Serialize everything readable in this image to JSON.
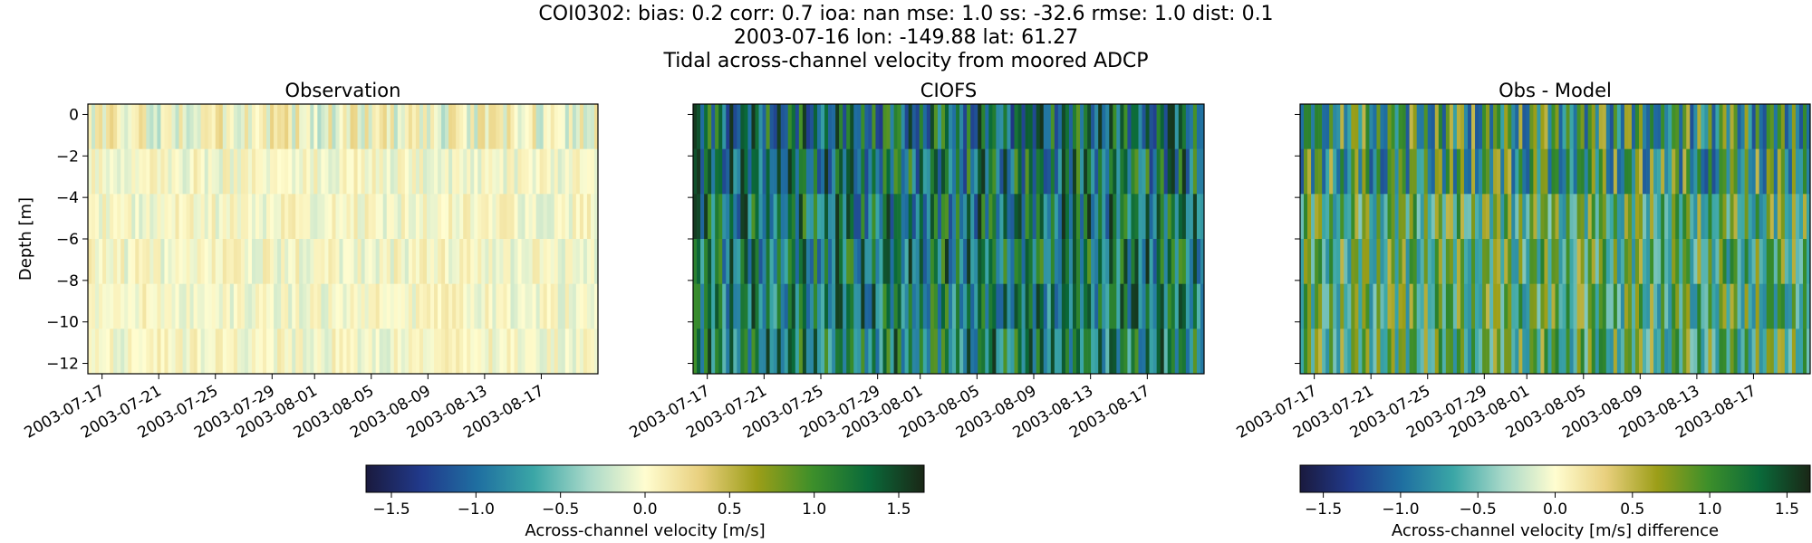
{
  "header": {
    "line1": "COI0302: bias: 0.2  corr: 0.7  ioa: nan  mse: 1.0  ss: -32.6  rmse: 1.0  dist: 0.1",
    "line2": "2003-07-16 lon: -149.88 lat: 61.27",
    "line3": "Tidal across-channel velocity from moored ADCP"
  },
  "colormap": [
    "#1a1a3e",
    "#213a8c",
    "#1f6fa1",
    "#3aa6a6",
    "#a9d9c9",
    "#fffdd0",
    "#e8cf7d",
    "#9c9e18",
    "#3d8f2a",
    "#0a6a3a",
    "#1a2716"
  ],
  "chart_data": [
    {
      "type": "heatmap",
      "title": "Observation",
      "xlabel": "",
      "ylabel": "Depth [m]",
      "x_ticks": [
        "2003-07-17",
        "2003-07-21",
        "2003-07-25",
        "2003-07-29",
        "2003-08-01",
        "2003-08-05",
        "2003-08-09",
        "2003-08-13",
        "2003-08-17"
      ],
      "y_ticks": [
        0,
        -2,
        -4,
        -6,
        -8,
        -10,
        -12
      ],
      "ylim": [
        -12.5,
        0.5
      ],
      "xlim": [
        "2003-07-16",
        "2003-08-21"
      ],
      "vmin": -1.65,
      "vmax": 1.65,
      "typical_amplitude": 0.5
    },
    {
      "type": "heatmap",
      "title": "CIOFS",
      "xlabel": "",
      "ylabel": "",
      "x_ticks": [
        "2003-07-17",
        "2003-07-21",
        "2003-07-25",
        "2003-07-29",
        "2003-08-01",
        "2003-08-05",
        "2003-08-09",
        "2003-08-13",
        "2003-08-17"
      ],
      "y_ticks": [
        0,
        -2,
        -4,
        -6,
        -8,
        -10,
        -12
      ],
      "ylim": [
        -12.5,
        0.5
      ],
      "xlim": [
        "2003-07-16",
        "2003-08-21"
      ],
      "vmin": -1.65,
      "vmax": 1.65,
      "typical_amplitude": 1.6
    },
    {
      "type": "heatmap",
      "title": "Obs - Model",
      "xlabel": "",
      "ylabel": "",
      "x_ticks": [
        "2003-07-17",
        "2003-07-21",
        "2003-07-25",
        "2003-07-29",
        "2003-08-01",
        "2003-08-05",
        "2003-08-09",
        "2003-08-13",
        "2003-08-17"
      ],
      "y_ticks": [
        0,
        -2,
        -4,
        -6,
        -8,
        -10,
        -12
      ],
      "ylim": [
        -12.5,
        0.5
      ],
      "xlim": [
        "2003-07-16",
        "2003-08-21"
      ],
      "vmin": -1.65,
      "vmax": 1.65,
      "typical_amplitude": 1.4
    }
  ],
  "colorbars": [
    {
      "label": "Across-channel velocity [m/s]",
      "ticks": [
        "−1.5",
        "−1.0",
        "−0.5",
        "0.0",
        "0.5",
        "1.0",
        "1.5"
      ],
      "tick_values": [
        -1.5,
        -1.0,
        -0.5,
        0.0,
        0.5,
        1.0,
        1.5
      ],
      "range": [
        -1.65,
        1.65
      ]
    },
    {
      "label": "Across-channel velocity [m/s] difference",
      "ticks": [
        "−1.5",
        "−1.0",
        "−0.5",
        "0.0",
        "0.5",
        "1.0",
        "1.5"
      ],
      "tick_values": [
        -1.5,
        -1.0,
        -0.5,
        0.0,
        0.5,
        1.0,
        1.5
      ],
      "range": [
        -1.65,
        1.65
      ]
    }
  ],
  "ytick_labels": [
    "0",
    "−2",
    "−4",
    "−6",
    "−8",
    "−10",
    "−12"
  ]
}
